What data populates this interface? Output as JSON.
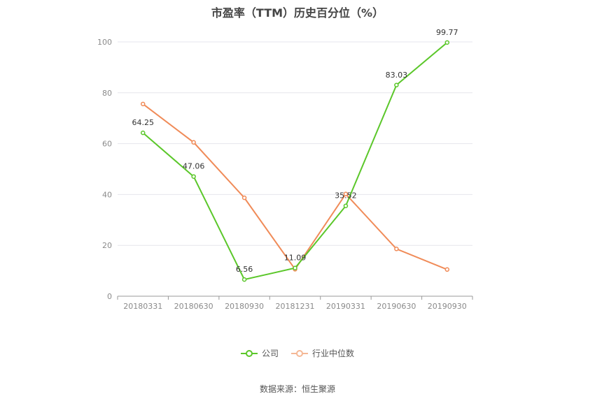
{
  "chart_data": {
    "type": "line",
    "title": "市盈率（TTM）历史百分位（%）",
    "categories": [
      "20180331",
      "20180630",
      "20180930",
      "20181231",
      "20190331",
      "20190630",
      "20190930"
    ],
    "ylim": [
      0,
      100
    ],
    "yticks": [
      0,
      20,
      40,
      60,
      80,
      100
    ],
    "grid": true,
    "legend_position": "bottom",
    "series": [
      {
        "name": "公司",
        "color": "#5bc72a",
        "values": [
          64.25,
          47.06,
          6.56,
          11.09,
          35.52,
          83.03,
          99.77
        ],
        "labels": [
          "64.25",
          "47.06",
          "6.56",
          "11.09",
          "35.52",
          "83.03",
          "99.77"
        ]
      },
      {
        "name": "行业中位数",
        "color": "#f08b58",
        "values": [
          75.6,
          60.5,
          38.7,
          10.6,
          40.2,
          18.6,
          10.5
        ]
      }
    ]
  },
  "source": "数据来源：恒生聚源"
}
